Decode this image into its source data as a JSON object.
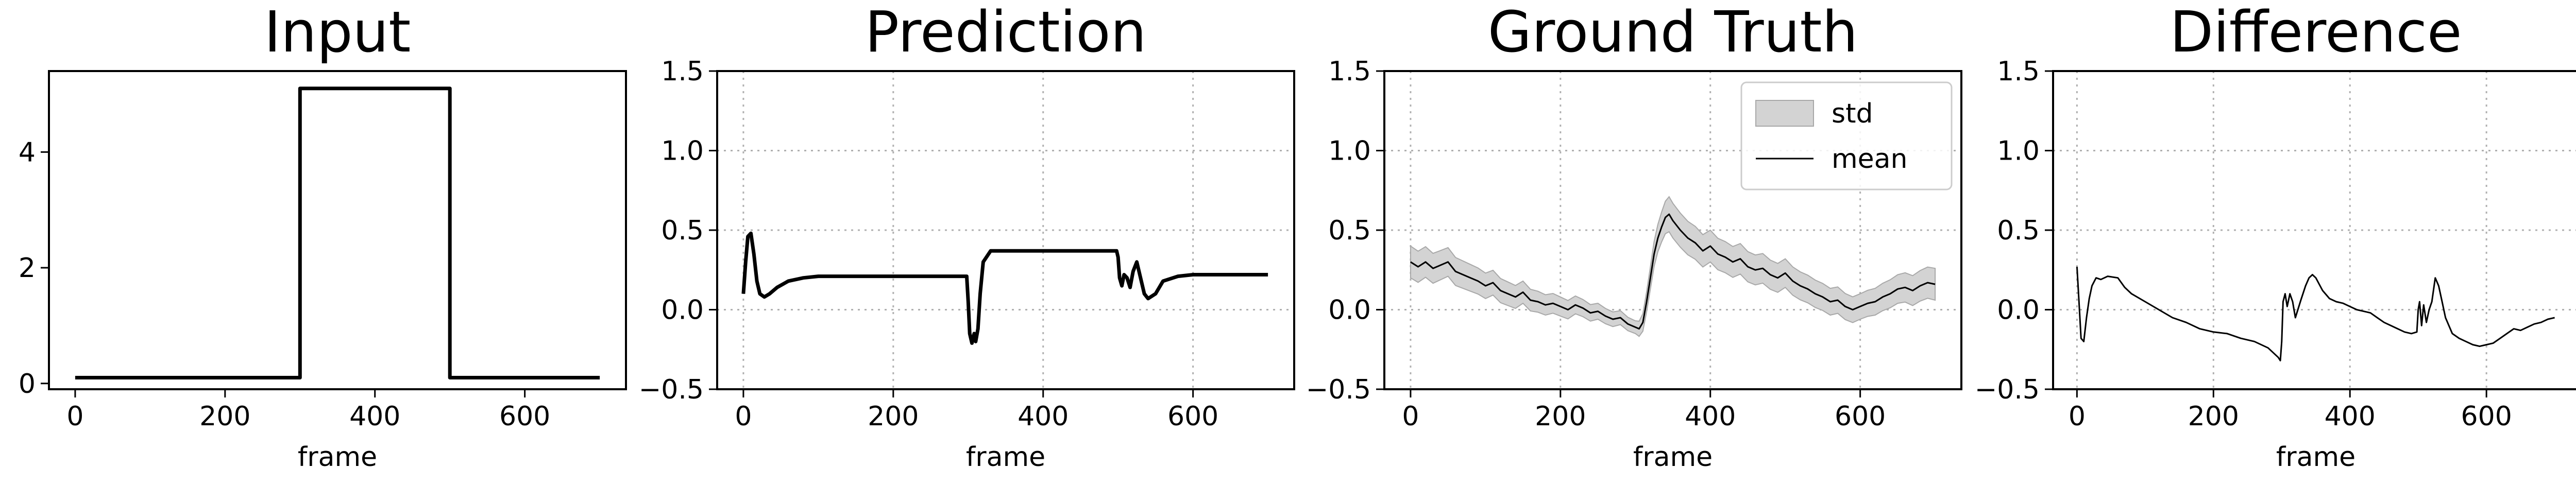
{
  "chart_data": [
    {
      "type": "line",
      "title": "Input",
      "xlabel": "frame",
      "xlim": [
        -35,
        735
      ],
      "ylim": [
        -0.1,
        5.4
      ],
      "xticks": [
        0,
        200,
        400,
        600
      ],
      "yticks": [
        0,
        2,
        4
      ],
      "grid": false,
      "series": [
        {
          "style": "thick",
          "color": "#000000",
          "x": [
            0,
            300,
            300,
            500,
            500,
            700
          ],
          "y": [
            0.1,
            0.1,
            5.1,
            5.1,
            0.1,
            0.1
          ]
        }
      ]
    },
    {
      "type": "line",
      "title": "Prediction",
      "xlabel": "frame",
      "xlim": [
        -35,
        735
      ],
      "ylim": [
        -0.5,
        1.5
      ],
      "xticks": [
        0,
        200,
        400,
        600
      ],
      "yticks": [
        -0.5,
        0.0,
        0.5,
        1.0,
        1.5
      ],
      "grid": true,
      "series": [
        {
          "style": "thick",
          "color": "#000000",
          "x": [
            0,
            3,
            6,
            10,
            14,
            18,
            22,
            28,
            35,
            45,
            60,
            80,
            100,
            150,
            200,
            250,
            298,
            300,
            302,
            305,
            308,
            310,
            313,
            316,
            320,
            330,
            340,
            350,
            400,
            450,
            498,
            500,
            502,
            505,
            508,
            512,
            516,
            520,
            525,
            530,
            535,
            540,
            550,
            560,
            580,
            600,
            650,
            700
          ],
          "y": [
            0.1,
            0.3,
            0.46,
            0.48,
            0.35,
            0.18,
            0.1,
            0.08,
            0.1,
            0.14,
            0.18,
            0.2,
            0.21,
            0.21,
            0.21,
            0.21,
            0.21,
            0.05,
            -0.15,
            -0.21,
            -0.15,
            -0.2,
            -0.12,
            0.1,
            0.3,
            0.37,
            0.37,
            0.37,
            0.37,
            0.37,
            0.37,
            0.33,
            0.2,
            0.15,
            0.22,
            0.2,
            0.14,
            0.24,
            0.3,
            0.2,
            0.1,
            0.07,
            0.1,
            0.18,
            0.21,
            0.22,
            0.22,
            0.22
          ]
        }
      ]
    },
    {
      "type": "area",
      "title": "Ground Truth",
      "xlabel": "frame",
      "xlim": [
        -35,
        735
      ],
      "ylim": [
        -0.5,
        1.5
      ],
      "xticks": [
        0,
        200,
        400,
        600
      ],
      "yticks": [
        -0.5,
        0.0,
        0.5,
        1.0,
        1.5
      ],
      "grid": true,
      "legend": {
        "position": "top-right",
        "entries": [
          "std",
          "mean"
        ]
      },
      "mean": {
        "x": [
          0,
          10,
          20,
          30,
          40,
          50,
          60,
          70,
          80,
          90,
          100,
          110,
          120,
          130,
          140,
          150,
          160,
          170,
          180,
          190,
          200,
          210,
          220,
          230,
          240,
          250,
          260,
          270,
          280,
          290,
          300,
          305,
          310,
          315,
          320,
          325,
          330,
          335,
          340,
          345,
          350,
          360,
          370,
          380,
          390,
          400,
          410,
          420,
          430,
          440,
          450,
          460,
          470,
          480,
          490,
          500,
          510,
          520,
          530,
          540,
          550,
          560,
          570,
          580,
          590,
          600,
          610,
          620,
          630,
          640,
          650,
          660,
          670,
          680,
          690,
          700
        ],
        "y": [
          0.3,
          0.27,
          0.3,
          0.26,
          0.28,
          0.3,
          0.24,
          0.22,
          0.2,
          0.18,
          0.15,
          0.17,
          0.12,
          0.1,
          0.08,
          0.11,
          0.06,
          0.05,
          0.03,
          0.04,
          0.02,
          0.0,
          0.03,
          0.01,
          -0.02,
          -0.01,
          -0.04,
          -0.06,
          -0.05,
          -0.09,
          -0.11,
          -0.12,
          -0.08,
          0.05,
          0.2,
          0.35,
          0.45,
          0.52,
          0.58,
          0.6,
          0.56,
          0.5,
          0.45,
          0.42,
          0.37,
          0.4,
          0.35,
          0.33,
          0.3,
          0.32,
          0.27,
          0.25,
          0.26,
          0.22,
          0.2,
          0.23,
          0.18,
          0.15,
          0.13,
          0.1,
          0.08,
          0.05,
          0.06,
          0.02,
          0.0,
          0.02,
          0.04,
          0.05,
          0.08,
          0.1,
          0.13,
          0.14,
          0.12,
          0.15,
          0.17,
          0.16
        ]
      },
      "std_halfwidth": {
        "x": [
          0,
          300,
          320,
          345,
          400,
          600,
          700
        ],
        "y": [
          0.1,
          0.04,
          0.07,
          0.11,
          0.1,
          0.08,
          0.1
        ]
      },
      "band_color": "#d3d3d3",
      "line_color": "#000000"
    },
    {
      "type": "line",
      "title": "Difference",
      "xlabel": "frame",
      "xlim": [
        -35,
        735
      ],
      "ylim": [
        -0.5,
        1.5
      ],
      "xticks": [
        0,
        200,
        400,
        600
      ],
      "yticks": [
        -0.5,
        0.0,
        0.5,
        1.0,
        1.5
      ],
      "grid": true,
      "series": [
        {
          "style": "thin",
          "color": "#000000",
          "x": [
            0,
            3,
            6,
            10,
            14,
            18,
            22,
            28,
            35,
            45,
            60,
            70,
            80,
            100,
            120,
            140,
            160,
            180,
            200,
            220,
            240,
            260,
            280,
            295,
            298,
            300,
            302,
            305,
            308,
            312,
            316,
            320,
            328,
            335,
            340,
            345,
            350,
            360,
            370,
            380,
            390,
            400,
            410,
            420,
            430,
            440,
            450,
            460,
            470,
            480,
            490,
            498,
            500,
            502,
            505,
            508,
            512,
            516,
            520,
            525,
            530,
            535,
            540,
            550,
            560,
            570,
            580,
            590,
            600,
            610,
            620,
            630,
            640,
            650,
            660,
            670,
            680,
            690,
            700
          ],
          "y": [
            0.27,
            0.05,
            -0.18,
            -0.2,
            -0.05,
            0.07,
            0.15,
            0.2,
            0.19,
            0.21,
            0.2,
            0.14,
            0.1,
            0.05,
            0.0,
            -0.05,
            -0.08,
            -0.12,
            -0.14,
            -0.15,
            -0.18,
            -0.2,
            -0.24,
            -0.3,
            -0.32,
            -0.2,
            0.05,
            0.1,
            0.02,
            0.1,
            0.05,
            -0.05,
            0.06,
            0.15,
            0.2,
            0.22,
            0.2,
            0.12,
            0.07,
            0.05,
            0.04,
            0.02,
            0.0,
            -0.01,
            -0.02,
            -0.05,
            -0.08,
            -0.1,
            -0.12,
            -0.14,
            -0.15,
            -0.14,
            0.0,
            0.05,
            -0.1,
            0.03,
            -0.08,
            0.0,
            0.05,
            0.2,
            0.15,
            0.05,
            -0.05,
            -0.15,
            -0.18,
            -0.2,
            -0.22,
            -0.23,
            -0.22,
            -0.21,
            -0.18,
            -0.15,
            -0.12,
            -0.13,
            -0.11,
            -0.09,
            -0.08,
            -0.06,
            -0.05
          ]
        }
      ]
    }
  ]
}
